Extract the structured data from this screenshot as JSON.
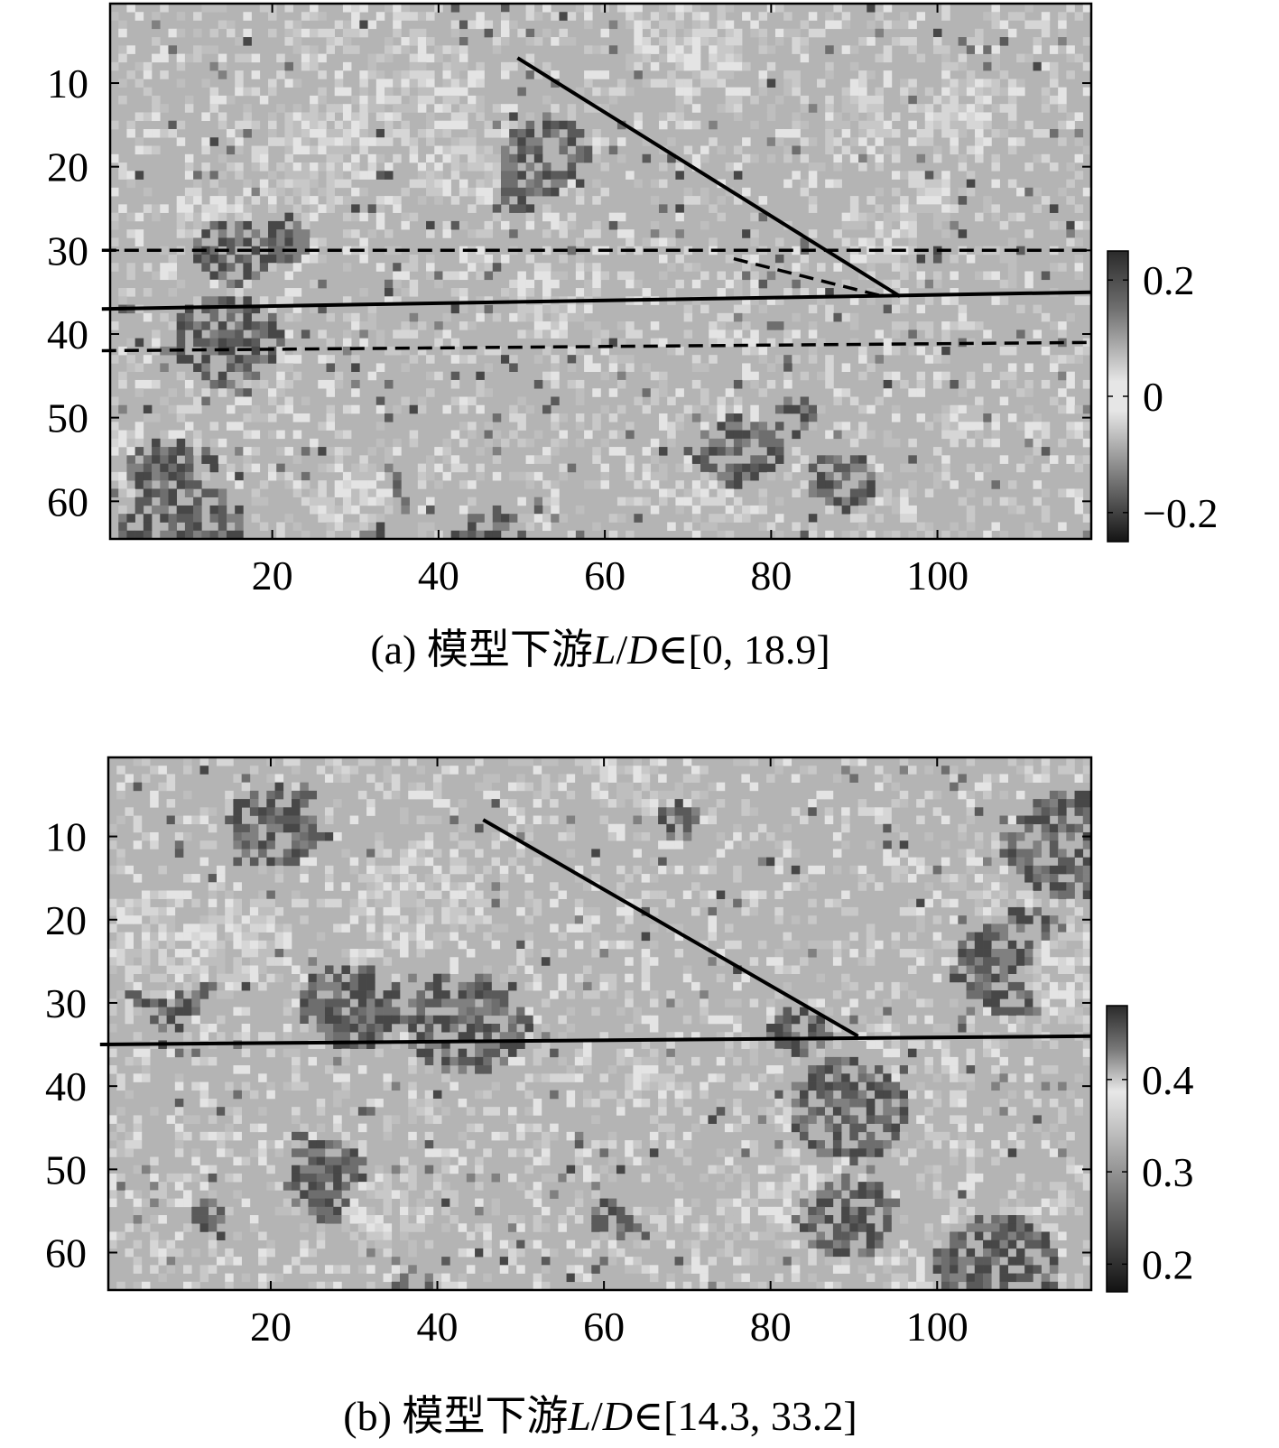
{
  "chart_data": [
    {
      "type": "heatmap",
      "panel": "a",
      "caption": {
        "prefix": "(a) 模型下游",
        "var_l": "L",
        "slash": "/",
        "var_d": "D",
        "range": "∈[0, 18.9]"
      },
      "x_ticks": [
        "20",
        "40",
        "60",
        "80",
        "100"
      ],
      "x_tick_values": [
        20,
        40,
        60,
        80,
        100
      ],
      "y_ticks": [
        "10",
        "20",
        "30",
        "40",
        "50",
        "60"
      ],
      "y_tick_values": [
        10,
        20,
        30,
        40,
        50,
        60
      ],
      "xlim": [
        1,
        118
      ],
      "ylim": [
        1,
        64
      ],
      "colorbar": {
        "ticks": [
          "0.2",
          "0",
          "−0.2"
        ],
        "tick_values": [
          0.2,
          0,
          -0.2
        ],
        "range": [
          -0.25,
          0.25
        ]
      },
      "lines": [
        {
          "style": "solid",
          "points": [
            [
              50,
              7
            ],
            [
              96,
              35.5
            ]
          ]
        },
        {
          "style": "solid",
          "points": [
            [
              0,
              37
            ],
            [
              119,
              35
            ]
          ]
        },
        {
          "style": "dashed",
          "points": [
            [
              0,
              30
            ],
            [
              119,
              30
            ]
          ]
        },
        {
          "style": "dashed",
          "points": [
            [
              76,
              31
            ],
            [
              94,
              35.5
            ]
          ]
        },
        {
          "style": "dashed",
          "points": [
            [
              0,
              42
            ],
            [
              119,
              41
            ]
          ]
        }
      ],
      "grid": false
    },
    {
      "type": "heatmap",
      "panel": "b",
      "caption": {
        "prefix": "(b) 模型下游",
        "var_l": "L",
        "slash": "/",
        "var_d": "D",
        "range": "∈[14.3, 33.2]"
      },
      "x_ticks": [
        "20",
        "40",
        "60",
        "80",
        "100"
      ],
      "x_tick_values": [
        20,
        40,
        60,
        80,
        100
      ],
      "y_ticks": [
        "10",
        "20",
        "30",
        "40",
        "50",
        "60"
      ],
      "y_tick_values": [
        10,
        20,
        30,
        40,
        50,
        60
      ],
      "xlim": [
        1,
        118
      ],
      "ylim": [
        1,
        64
      ],
      "colorbar": {
        "ticks": [
          "0.4",
          "0.3",
          "0.2"
        ],
        "tick_values": [
          0.4,
          0.3,
          0.2
        ],
        "range": [
          0.17,
          0.48
        ]
      },
      "lines": [
        {
          "style": "solid",
          "points": [
            [
              46,
              8
            ],
            [
              91,
              34
            ]
          ]
        },
        {
          "style": "solid",
          "points": [
            [
              0,
              35
            ],
            [
              119,
              34
            ]
          ]
        }
      ],
      "grid": false
    }
  ]
}
